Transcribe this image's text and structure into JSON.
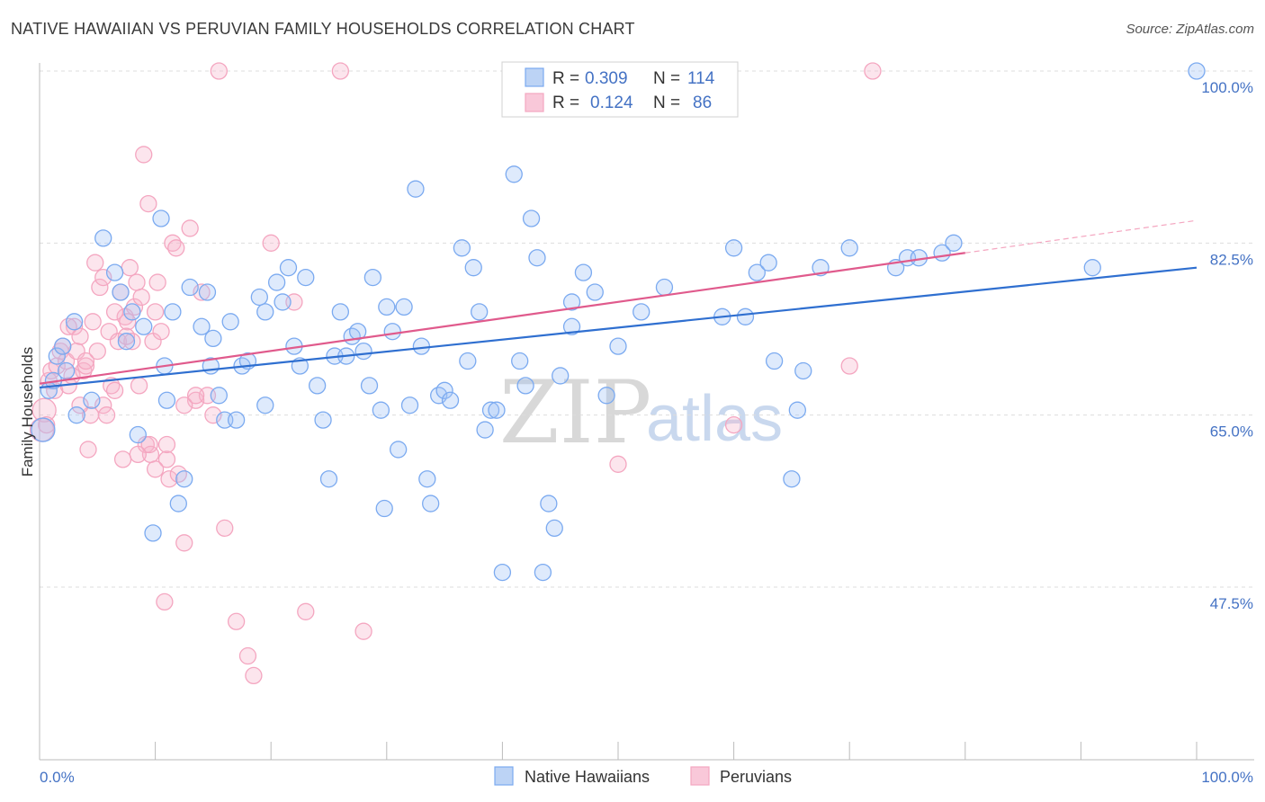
{
  "header": {
    "title": "NATIVE HAWAIIAN VS PERUVIAN FAMILY HOUSEHOLDS CORRELATION CHART",
    "source": "Source: ZipAtlas.com"
  },
  "watermark": {
    "zip": "ZIP",
    "atlas": "atlas"
  },
  "legend": {
    "rows": [
      {
        "r_label": "R =",
        "r_value": "0.309",
        "n_label": "N =",
        "n_value": "114"
      },
      {
        "r_label": "R =",
        "r_value": "0.124",
        "n_label": "N =",
        "n_value": "86"
      }
    ]
  },
  "chart_data": {
    "type": "scatter",
    "title": "NATIVE HAWAIIAN VS PERUVIAN FAMILY HOUSEHOLDS CORRELATION CHART",
    "ylabel": "Family Households",
    "xlabel": "",
    "xlim": [
      0,
      100
    ],
    "ylim": [
      30,
      102
    ],
    "x_tick_labels": [
      "0.0%",
      "100.0%"
    ],
    "y_ticks": [
      47.5,
      65.0,
      82.5,
      100.0
    ],
    "y_tick_labels": [
      "47.5%",
      "65.0%",
      "82.5%",
      "100.0%"
    ],
    "grid": true,
    "legend_position": "top-center",
    "series": [
      {
        "name": "Native Hawaiians",
        "color": "#7baaf0",
        "line_color": "#2f6fd0",
        "trend": {
          "x": [
            0,
            100
          ],
          "y": [
            67.8,
            80.0
          ]
        },
        "points": [
          [
            0.3,
            63.5
          ],
          [
            0.8,
            67.5
          ],
          [
            1.2,
            68.5
          ],
          [
            1.5,
            71
          ],
          [
            2,
            72
          ],
          [
            2.3,
            69.5
          ],
          [
            3,
            74.5
          ],
          [
            3.2,
            65
          ],
          [
            4.5,
            66.5
          ],
          [
            5.5,
            83
          ],
          [
            6.5,
            79.5
          ],
          [
            7,
            77.5
          ],
          [
            7.5,
            72.5
          ],
          [
            8,
            75.5
          ],
          [
            8.5,
            63
          ],
          [
            9,
            74
          ],
          [
            9.8,
            53
          ],
          [
            10.5,
            85
          ],
          [
            10.8,
            70
          ],
          [
            11,
            66.5
          ],
          [
            11.5,
            75.5
          ],
          [
            12,
            56
          ],
          [
            12.5,
            58.5
          ],
          [
            13,
            78
          ],
          [
            14,
            74
          ],
          [
            14.5,
            77.5
          ],
          [
            14.8,
            70
          ],
          [
            15,
            72.8
          ],
          [
            15.5,
            67
          ],
          [
            16,
            64.5
          ],
          [
            16.5,
            74.5
          ],
          [
            17,
            64.5
          ],
          [
            17.5,
            70
          ],
          [
            18,
            70.5
          ],
          [
            19,
            77
          ],
          [
            19.5,
            66
          ],
          [
            19.5,
            75.5
          ],
          [
            20.5,
            78.5
          ],
          [
            21,
            76.5
          ],
          [
            21.5,
            80
          ],
          [
            22,
            72
          ],
          [
            22.5,
            70
          ],
          [
            23,
            79
          ],
          [
            24,
            68
          ],
          [
            24.5,
            64.5
          ],
          [
            25,
            58.5
          ],
          [
            25.5,
            71
          ],
          [
            26,
            75.5
          ],
          [
            26.5,
            71
          ],
          [
            27,
            73
          ],
          [
            27.5,
            73.5
          ],
          [
            28,
            71.5
          ],
          [
            28.5,
            68
          ],
          [
            28.8,
            79
          ],
          [
            29.5,
            65.5
          ],
          [
            29.8,
            55.5
          ],
          [
            30,
            76
          ],
          [
            30.5,
            73.5
          ],
          [
            31,
            61.5
          ],
          [
            31.5,
            76
          ],
          [
            32,
            66
          ],
          [
            32.5,
            88
          ],
          [
            33,
            72
          ],
          [
            33.5,
            58.5
          ],
          [
            33.8,
            56
          ],
          [
            34.5,
            67
          ],
          [
            35,
            67.5
          ],
          [
            35.5,
            66.5
          ],
          [
            36.5,
            82
          ],
          [
            37,
            70.5
          ],
          [
            37.5,
            80
          ],
          [
            38,
            75.5
          ],
          [
            38.5,
            63.5
          ],
          [
            39,
            65.5
          ],
          [
            39.5,
            65.5
          ],
          [
            40,
            49
          ],
          [
            41,
            89.5
          ],
          [
            41.5,
            70.5
          ],
          [
            42,
            68
          ],
          [
            42.5,
            85
          ],
          [
            43,
            81
          ],
          [
            43.5,
            49
          ],
          [
            44,
            56
          ],
          [
            44.5,
            53.5
          ],
          [
            45,
            69
          ],
          [
            46,
            76.5
          ],
          [
            46,
            74
          ],
          [
            47,
            79.5
          ],
          [
            48,
            77.5
          ],
          [
            49,
            67
          ],
          [
            50,
            72
          ],
          [
            52,
            75.5
          ],
          [
            54,
            78
          ],
          [
            59,
            75
          ],
          [
            60,
            82
          ],
          [
            61,
            75
          ],
          [
            62,
            79.5
          ],
          [
            63,
            80.5
          ],
          [
            63.5,
            70.5
          ],
          [
            65,
            58.5
          ],
          [
            65.5,
            65.5
          ],
          [
            66,
            69.5
          ],
          [
            67.5,
            80
          ],
          [
            70,
            82
          ],
          [
            74,
            80
          ],
          [
            75,
            81
          ],
          [
            76,
            81
          ],
          [
            78,
            81.5
          ],
          [
            79,
            82.5
          ],
          [
            91,
            80
          ],
          [
            100,
            100
          ]
        ]
      },
      {
        "name": "Peruvians",
        "color": "#f4a6c0",
        "line_color": "#e05a8c",
        "trend": {
          "x": [
            0,
            80
          ],
          "y": [
            68.2,
            81.5
          ]
        },
        "trend_extension": {
          "x": [
            80,
            100
          ],
          "y": [
            81.5,
            84.8
          ]
        },
        "points": [
          [
            0.2,
            63.5
          ],
          [
            0.4,
            65.5
          ],
          [
            0.6,
            64
          ],
          [
            0.8,
            68.5
          ],
          [
            1,
            69.5
          ],
          [
            1.3,
            67.5
          ],
          [
            1.5,
            70
          ],
          [
            1.8,
            71.5
          ],
          [
            2,
            72
          ],
          [
            2.3,
            70.5
          ],
          [
            2.5,
            68
          ],
          [
            2.8,
            69
          ],
          [
            3,
            74
          ],
          [
            3.2,
            71.5
          ],
          [
            3.5,
            73
          ],
          [
            3.8,
            69.5
          ],
          [
            4,
            70
          ],
          [
            4.2,
            61.5
          ],
          [
            4.4,
            65
          ],
          [
            4.6,
            74.5
          ],
          [
            4.8,
            80.5
          ],
          [
            5,
            71.5
          ],
          [
            5.2,
            78
          ],
          [
            5.5,
            66
          ],
          [
            5.8,
            65
          ],
          [
            6,
            73.5
          ],
          [
            6.2,
            68
          ],
          [
            6.5,
            67.5
          ],
          [
            6.8,
            72.5
          ],
          [
            7,
            77.5
          ],
          [
            7.2,
            60.5
          ],
          [
            7.4,
            75
          ],
          [
            7.6,
            74.5
          ],
          [
            7.8,
            80
          ],
          [
            8,
            72.5
          ],
          [
            8.2,
            76
          ],
          [
            8.4,
            78.5
          ],
          [
            8.6,
            68
          ],
          [
            8.8,
            77
          ],
          [
            9,
            91.5
          ],
          [
            9.2,
            62
          ],
          [
            9.4,
            86.5
          ],
          [
            9.6,
            61
          ],
          [
            9.8,
            72.5
          ],
          [
            10,
            75.5
          ],
          [
            10.2,
            78.5
          ],
          [
            10.5,
            73.5
          ],
          [
            10.8,
            46
          ],
          [
            11,
            60.5
          ],
          [
            11.2,
            58.5
          ],
          [
            11.5,
            82.5
          ],
          [
            11.8,
            82
          ],
          [
            12,
            59
          ],
          [
            12.5,
            52
          ],
          [
            13,
            84
          ],
          [
            13.5,
            66.5
          ],
          [
            14,
            77.5
          ],
          [
            14.5,
            67
          ],
          [
            15,
            65
          ],
          [
            15.5,
            100
          ],
          [
            16,
            53.5
          ],
          [
            17,
            44
          ],
          [
            18,
            40.5
          ],
          [
            18.5,
            38.5
          ],
          [
            20,
            82.5
          ],
          [
            22,
            76.5
          ],
          [
            23,
            45
          ],
          [
            26,
            100
          ],
          [
            28,
            43
          ],
          [
            41,
            100
          ],
          [
            50,
            60
          ],
          [
            60,
            64
          ],
          [
            70,
            70
          ],
          [
            72,
            100
          ],
          [
            5.5,
            79
          ],
          [
            7.5,
            73
          ],
          [
            9.5,
            62
          ],
          [
            11,
            62
          ],
          [
            12.5,
            66
          ],
          [
            13.5,
            67
          ],
          [
            2.5,
            74
          ],
          [
            3.5,
            66
          ],
          [
            6.5,
            75.5
          ],
          [
            8.5,
            61
          ],
          [
            10,
            59.5
          ],
          [
            4,
            70.5
          ]
        ]
      }
    ]
  }
}
